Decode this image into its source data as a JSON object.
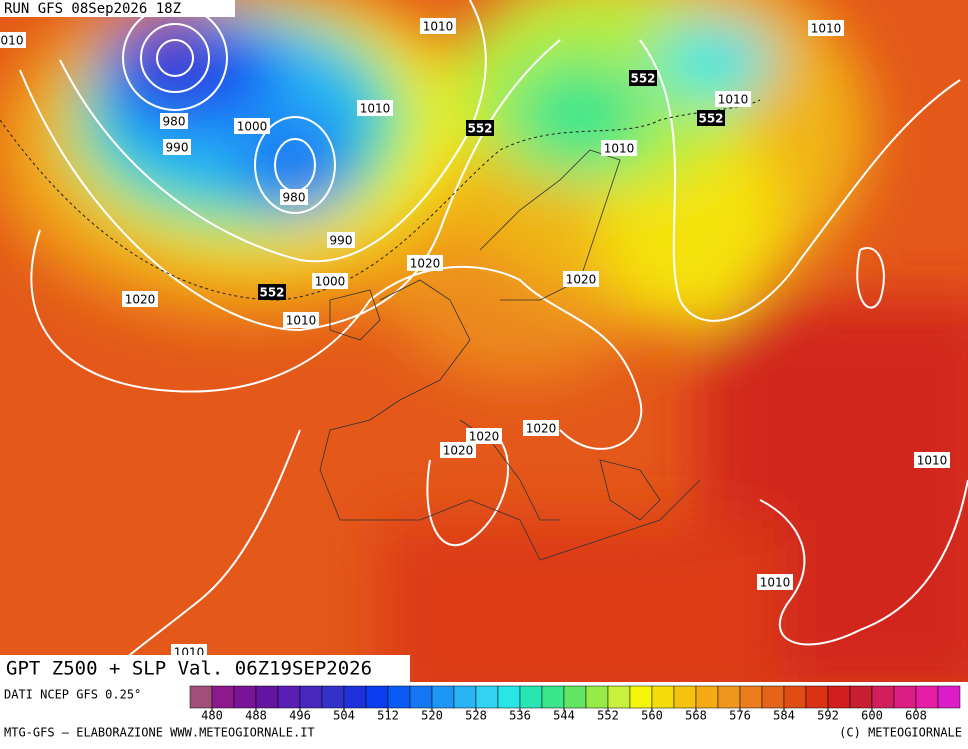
{
  "header": {
    "run": "RUN GFS 08Sep2026 18Z"
  },
  "map": {
    "labels": [
      "010",
      1010,
      1010,
      552,
      1010,
      552,
      980,
      1000,
      1010,
      552,
      990,
      1010,
      980,
      990,
      1020,
      1020,
      1000,
      552,
      1020,
      1010,
      1020,
      1020,
      1020,
      1010,
      1010,
      1010
    ]
  },
  "footer": {
    "title": "GPT Z500 + SLP Val. 06Z19SEP2026",
    "source": "DATI NCEP GFS 0.25°",
    "credit": "MTG-GFS – ELABORAZIONE WWW.METEOGIORNALE.IT",
    "copyright": "(C) METEOGIORNALE"
  },
  "colorbar": {
    "ticks": [
      480,
      488,
      496,
      504,
      512,
      520,
      528,
      536,
      544,
      552,
      560,
      568,
      576,
      584,
      592,
      600,
      608
    ],
    "colors": [
      "#a05078",
      "#8c1a8c",
      "#7a1496",
      "#6414a0",
      "#5a1eb4",
      "#4628be",
      "#3232c8",
      "#1e32dc",
      "#0a3cf0",
      "#0a5af5",
      "#1478f5",
      "#1e96f5",
      "#28b4f5",
      "#32d2f5",
      "#28e6e6",
      "#28e6b4",
      "#3ce68c",
      "#64e664",
      "#96eb46",
      "#c8f03c",
      "#f5f50a",
      "#f5dc0a",
      "#f5c30f",
      "#f5aa14",
      "#f0961e",
      "#eb7d1e",
      "#e66419",
      "#e14b14",
      "#dc3214",
      "#d21e1e",
      "#c81e32",
      "#d21e5a",
      "#dc1e82",
      "#e61ea5",
      "#dc1ec8"
    ]
  }
}
